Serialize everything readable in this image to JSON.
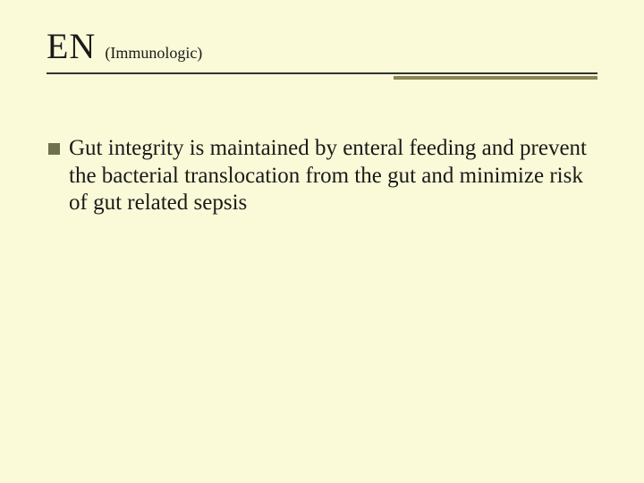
{
  "slide": {
    "background_color": "#fafad8",
    "text_color": "#1a1a1a",
    "title": {
      "main": "EN",
      "main_fontsize": 40,
      "sub": "(Immunologic)",
      "sub_fontsize": 18
    },
    "underline": {
      "long_color": "#323232",
      "long_height": 2,
      "short_color": "#8a8558",
      "short_height": 4,
      "short_width": 228
    },
    "bullets": [
      {
        "marker_color": "#6f704f",
        "marker_size": 13,
        "text_fontsize": 25,
        "text": "Gut integrity is maintained by enteral  feeding and prevent the bacterial translocation from the gut and minimize risk of gut related sepsis"
      }
    ]
  }
}
